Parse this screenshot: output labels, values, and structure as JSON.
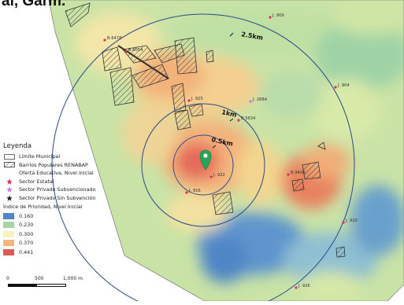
{
  "title": "al, Garm.",
  "rings": [
    {
      "label": "2.5km"
    },
    {
      "label": "1km"
    },
    {
      "label": "0.5km"
    }
  ],
  "schools": [
    {
      "label": "J. 909",
      "sector": "estatal"
    },
    {
      "label": "B.6478",
      "sector": "estatal"
    },
    {
      "label": "B.6054",
      "sector": "estatal"
    },
    {
      "label": "J. 904",
      "sector": "estatal"
    },
    {
      "label": "J. 925",
      "sector": "estatal"
    },
    {
      "label": "J. 2684",
      "sector": "privado_subvencionado"
    },
    {
      "label": "B.5634",
      "sector": "estatal"
    },
    {
      "label": "J. 922",
      "sector": "estatal"
    },
    {
      "label": "J. 916",
      "sector": "estatal"
    },
    {
      "label": "B.9400",
      "sector": "estatal"
    },
    {
      "label": "J. 920",
      "sector": "estatal"
    },
    {
      "label": "J. 926",
      "sector": "estatal"
    }
  ],
  "legend": {
    "heading": "Leyenda",
    "items": [
      {
        "label": "Límite Municipal",
        "symbol": "outline-box"
      },
      {
        "label": "Barrios Populares RENABAP",
        "symbol": "hatched-box"
      },
      {
        "label": "Oferta Educativa, Nivel Inicial",
        "symbol": "empty"
      },
      {
        "label": "Sector Estatal",
        "symbol": "star",
        "color": "#d8315b"
      },
      {
        "label": "Sector Privado Subvencionado",
        "symbol": "star",
        "color": "#c774e8"
      },
      {
        "label": "Sector Privado Sin Subvención",
        "symbol": "star",
        "color": "#222222"
      }
    ],
    "priority_heading": "Índice de Prioridad, Nivel Inicial",
    "priority": [
      {
        "label": "0.160",
        "color": "#4f86c6"
      },
      {
        "label": "0.230",
        "color": "#a9d5a3"
      },
      {
        "label": "0.300",
        "color": "#f6f4bc"
      },
      {
        "label": "0.370",
        "color": "#f5b57e"
      },
      {
        "label": "0.441",
        "color": "#de5a56"
      }
    ]
  },
  "scale": {
    "labels": [
      "0",
      "500",
      "1,000 m"
    ]
  },
  "marker": {
    "icon": "location-pin-icon",
    "color": "#27a45a"
  }
}
